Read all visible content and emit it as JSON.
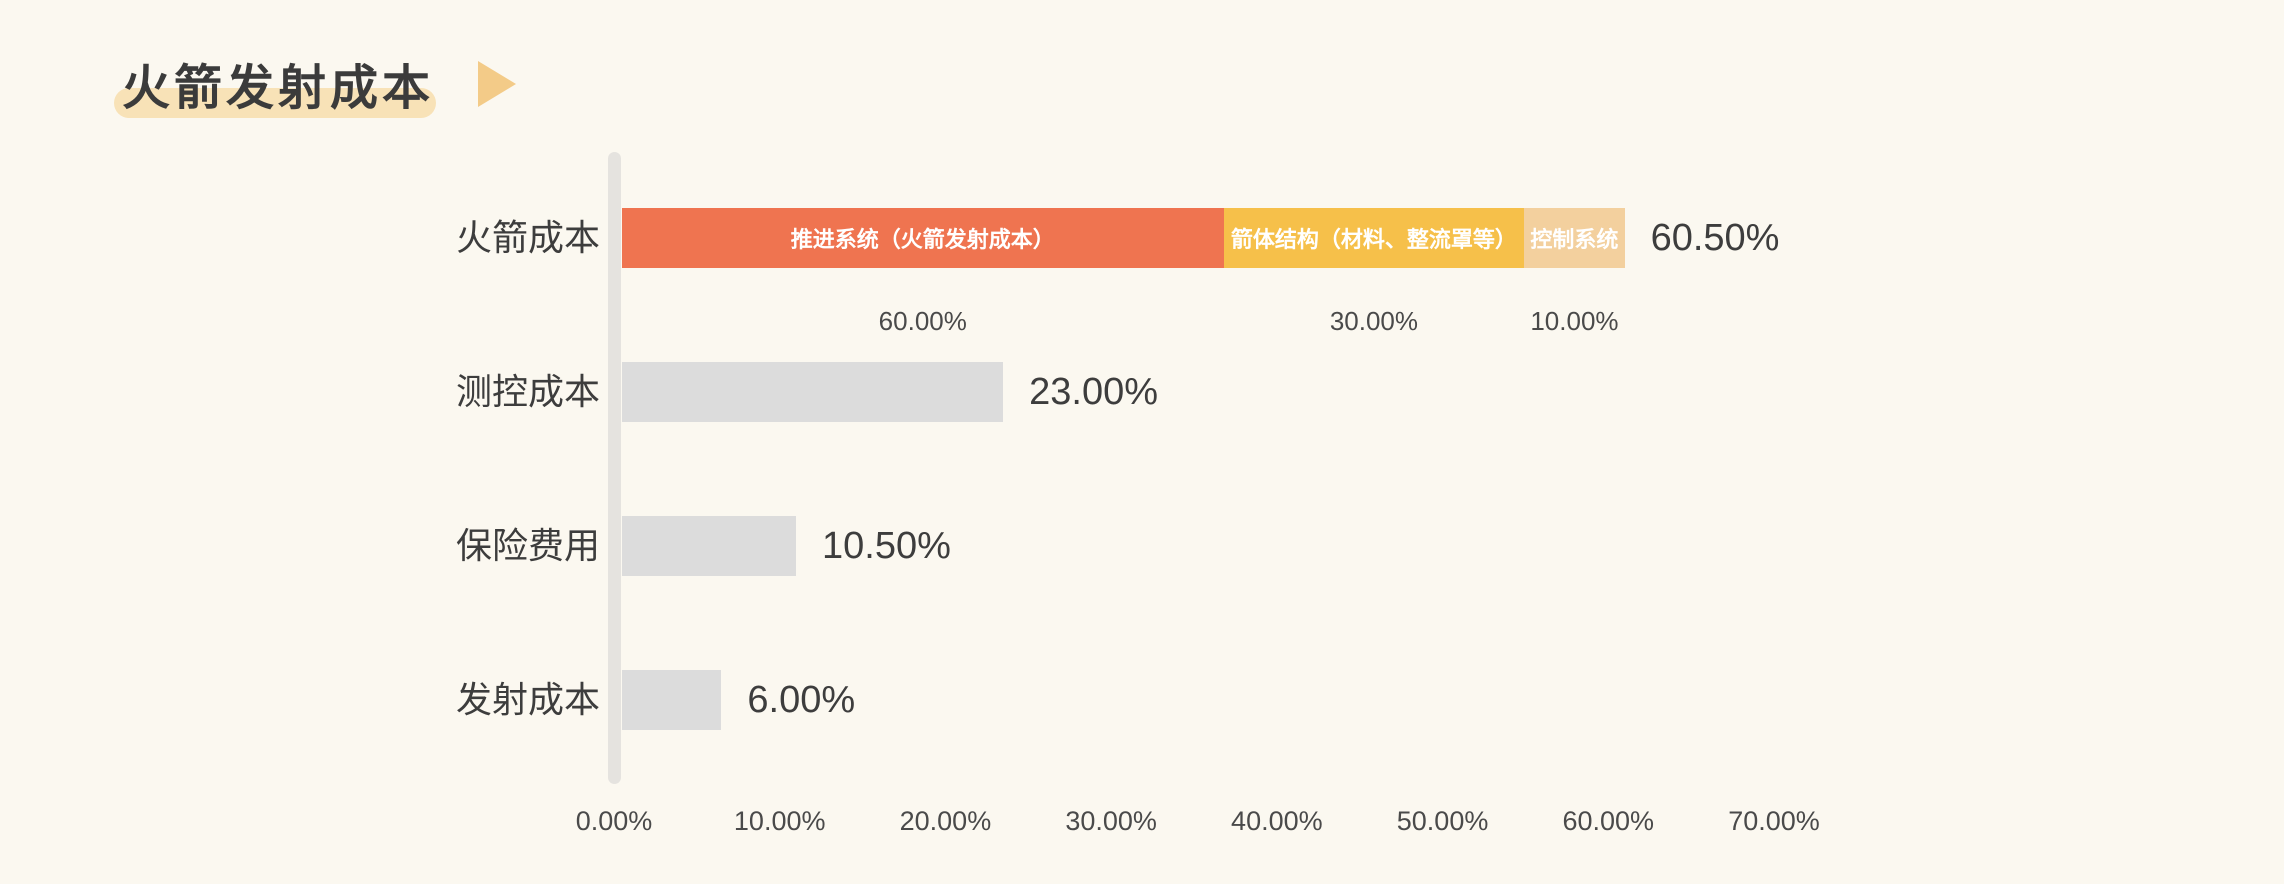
{
  "title": {
    "text": "火箭发射成本",
    "arrow_icon": "right-triangle-icon"
  },
  "colors": {
    "background": "#FBF8F0",
    "title_text": "#3B3B3B",
    "title_highlight": "#F8E2B7",
    "title_arrow": "#F3CB88",
    "axis_line": "#E5E3DF",
    "default_bar": "#DCDCDC",
    "value_text": "#3D3D3D",
    "secondary_text": "#4A4A4A",
    "segment_text": "#FFFFFF"
  },
  "chart_data": {
    "type": "bar",
    "orientation": "horizontal",
    "title": "火箭发射成本",
    "categories": [
      "火箭成本",
      "测控成本",
      "保险费用",
      "发射成本"
    ],
    "values": [
      60.5,
      23.0,
      10.5,
      6.0
    ],
    "value_labels": [
      "60.50%",
      "23.00%",
      "10.50%",
      "6.00%"
    ],
    "bars": [
      {
        "category": "火箭成本",
        "total": 60.5,
        "total_label": "60.50%",
        "segments": [
          {
            "label": "推进系统（火箭发射成本）",
            "value": 60.0,
            "value_label": "60.00%",
            "color": "#EF7450"
          },
          {
            "label": "箭体结构（材料、整流罩等）",
            "value": 30.0,
            "value_label": "30.00%",
            "color": "#F6C04A"
          },
          {
            "label": "控制系统",
            "value": 10.0,
            "value_label": "10.00%",
            "color": "#F3D09E"
          }
        ]
      },
      {
        "category": "测控成本",
        "total": 23.0,
        "total_label": "23.00%",
        "color": "#DCDCDC"
      },
      {
        "category": "保险费用",
        "total": 10.5,
        "total_label": "10.50%",
        "color": "#DCDCDC"
      },
      {
        "category": "发射成本",
        "total": 6.0,
        "total_label": "6.00%",
        "color": "#DCDCDC"
      }
    ],
    "x_axis": {
      "min": 0,
      "max": 70,
      "tick_labels": [
        "0.00%",
        "10.00%",
        "20.00%",
        "30.00%",
        "40.00%",
        "50.00%",
        "60.00%",
        "70.00%"
      ],
      "grid": false
    },
    "legend": "none"
  }
}
